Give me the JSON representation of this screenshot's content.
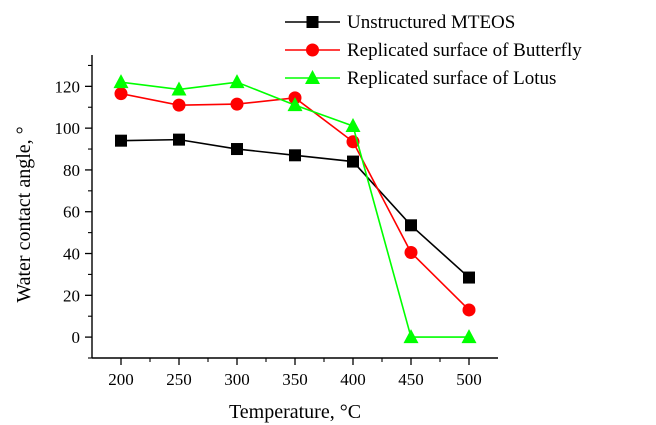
{
  "chart_data": {
    "type": "line",
    "title": "",
    "xlabel": "Temperature, °C",
    "ylabel": "Water contact angle, °",
    "x": [
      200,
      250,
      300,
      350,
      400,
      450,
      500
    ],
    "xlim": [
      175,
      525
    ],
    "ylim": [
      -10,
      135
    ],
    "xticks": [
      200,
      250,
      300,
      350,
      400,
      450,
      500
    ],
    "yticks": [
      0,
      20,
      40,
      60,
      80,
      100,
      120
    ],
    "grid": false,
    "legend_position": "top-right",
    "series": [
      {
        "name": "Unstructured MTEOS",
        "values": [
          94,
          94.5,
          90,
          87,
          84,
          53.5,
          28.5
        ],
        "color": "#000000",
        "marker": "square"
      },
      {
        "name": "Replicated surface of Butterfly",
        "values": [
          116.5,
          111,
          111.5,
          114.5,
          93.5,
          40.5,
          13
        ],
        "color": "#ff0000",
        "marker": "circle"
      },
      {
        "name": "Replicated surface of Lotus",
        "values": [
          122,
          118.5,
          122,
          111,
          101,
          0,
          0
        ],
        "color": "#00ff00",
        "marker": "triangle"
      }
    ]
  }
}
